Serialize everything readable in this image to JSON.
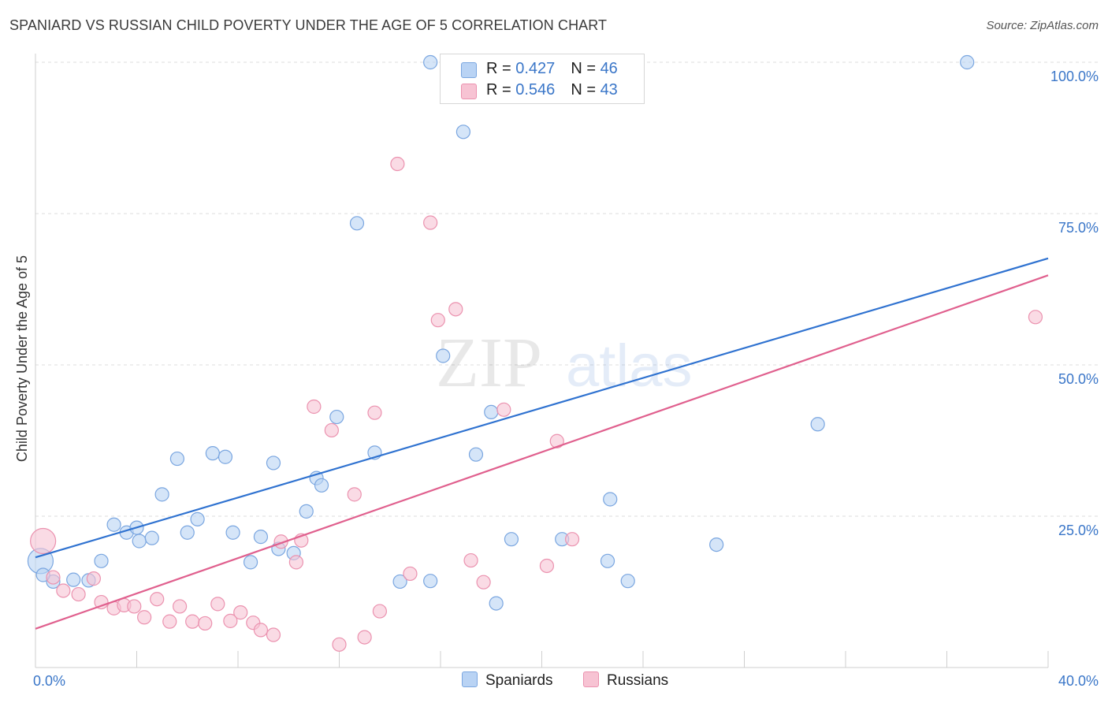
{
  "header": {
    "title": "SPANIARD VS RUSSIAN CHILD POVERTY UNDER THE AGE OF 5 CORRELATION CHART",
    "source": "Source: ZipAtlas.com"
  },
  "watermark": {
    "zip": "ZIP",
    "atlas": "atlas"
  },
  "stats": [
    {
      "r_label": "R = ",
      "r_value": "0.427",
      "n_label": "N = ",
      "n_value": "46"
    },
    {
      "r_label": "R = ",
      "r_value": "0.546",
      "n_label": "N = ",
      "n_value": "43"
    }
  ],
  "colors": {
    "spaniards_fill": "#b9d3f4",
    "spaniards_stroke": "#7aa6e0",
    "spaniards_line": "#2f72d0",
    "russians_fill": "#f7c3d3",
    "russians_stroke": "#eb92af",
    "russians_line": "#e0608e",
    "tick_label": "#3a76c8",
    "grid": "#dddddd"
  },
  "chart_data": {
    "type": "scatter",
    "title": "SPANIARD VS RUSSIAN CHILD POVERTY UNDER THE AGE OF 5 CORRELATION CHART",
    "xlabel": "",
    "ylabel": "Child Poverty Under the Age of 5",
    "xlim": [
      0,
      40
    ],
    "ylim": [
      0,
      100
    ],
    "x_tick_labels": [
      {
        "value": 0,
        "label": "0.0%"
      },
      {
        "value": 40,
        "label": "40.0%"
      }
    ],
    "y_tick_labels": [
      {
        "value": 25,
        "label": "25.0%"
      },
      {
        "value": 50,
        "label": "50.0%"
      },
      {
        "value": 75,
        "label": "75.0%"
      },
      {
        "value": 100,
        "label": "100.0%"
      }
    ],
    "grid": "horizontal dashed",
    "legend": "bottom-center",
    "series": [
      {
        "name": "Spaniards",
        "trendline": [
          [
            0,
            18.2
          ],
          [
            40,
            67.6
          ]
        ],
        "points": [
          [
            0.2,
            17.6,
            "large"
          ],
          [
            0.7,
            14.2
          ],
          [
            1.5,
            14.5
          ],
          [
            2.1,
            14.4
          ],
          [
            2.6,
            17.6
          ],
          [
            3.1,
            23.6
          ],
          [
            3.6,
            22.3
          ],
          [
            4.1,
            20.9
          ],
          [
            4.6,
            21.4
          ],
          [
            5.0,
            28.6
          ],
          [
            5.6,
            34.5
          ],
          [
            6.0,
            22.3
          ],
          [
            6.4,
            24.5
          ],
          [
            7.0,
            35.4
          ],
          [
            7.5,
            34.8
          ],
          [
            7.8,
            22.3
          ],
          [
            8.5,
            17.4
          ],
          [
            8.9,
            21.6
          ],
          [
            9.4,
            33.8
          ],
          [
            9.6,
            19.6
          ],
          [
            10.2,
            18.9
          ],
          [
            10.7,
            25.8
          ],
          [
            11.1,
            31.3
          ],
          [
            11.3,
            30.1
          ],
          [
            11.9,
            41.4
          ],
          [
            12.7,
            73.4
          ],
          [
            13.4,
            35.5
          ],
          [
            14.4,
            14.2
          ],
          [
            15.6,
            100.0
          ],
          [
            15.6,
            14.3
          ],
          [
            16.1,
            51.5
          ],
          [
            16.9,
            88.5
          ],
          [
            17.4,
            35.2
          ],
          [
            18.0,
            42.2
          ],
          [
            18.2,
            10.6
          ],
          [
            18.8,
            21.2
          ],
          [
            20.4,
            100.0
          ],
          [
            20.8,
            21.2
          ],
          [
            22.6,
            17.6
          ],
          [
            22.7,
            27.8
          ],
          [
            23.4,
            14.3
          ],
          [
            26.9,
            20.3
          ],
          [
            30.9,
            40.2
          ],
          [
            36.8,
            100.0
          ],
          [
            0.3,
            15.3
          ],
          [
            4.0,
            23.1
          ]
        ]
      },
      {
        "name": "Russians",
        "trendline": [
          [
            0,
            6.4
          ],
          [
            40,
            64.8
          ]
        ],
        "points": [
          [
            0.3,
            20.9,
            "large"
          ],
          [
            0.7,
            14.9
          ],
          [
            1.1,
            12.7
          ],
          [
            1.7,
            12.1
          ],
          [
            2.3,
            14.7
          ],
          [
            2.6,
            10.8
          ],
          [
            3.1,
            9.8
          ],
          [
            3.5,
            10.3
          ],
          [
            3.9,
            10.1
          ],
          [
            4.3,
            8.3
          ],
          [
            4.8,
            11.3
          ],
          [
            5.3,
            7.6
          ],
          [
            5.7,
            10.1
          ],
          [
            6.2,
            7.6
          ],
          [
            6.7,
            7.3
          ],
          [
            7.2,
            10.5
          ],
          [
            7.7,
            7.7
          ],
          [
            8.1,
            9.1
          ],
          [
            8.6,
            7.4
          ],
          [
            8.9,
            6.2
          ],
          [
            9.4,
            5.4
          ],
          [
            9.7,
            20.8
          ],
          [
            10.3,
            17.4
          ],
          [
            10.5,
            21.0
          ],
          [
            11.0,
            43.1
          ],
          [
            11.7,
            39.2
          ],
          [
            12.0,
            3.8
          ],
          [
            12.6,
            28.6
          ],
          [
            13.4,
            42.1
          ],
          [
            13.6,
            9.3
          ],
          [
            14.3,
            83.2
          ],
          [
            14.8,
            15.5
          ],
          [
            15.6,
            73.5
          ],
          [
            15.9,
            57.4
          ],
          [
            16.6,
            59.2
          ],
          [
            17.2,
            17.7
          ],
          [
            17.7,
            14.1
          ],
          [
            18.5,
            42.6
          ],
          [
            20.6,
            37.4
          ],
          [
            20.2,
            16.8
          ],
          [
            21.2,
            21.2
          ],
          [
            13.0,
            5.0
          ],
          [
            39.5,
            57.9
          ]
        ]
      }
    ]
  },
  "legend": {
    "items": [
      "Spaniards",
      "Russians"
    ]
  }
}
